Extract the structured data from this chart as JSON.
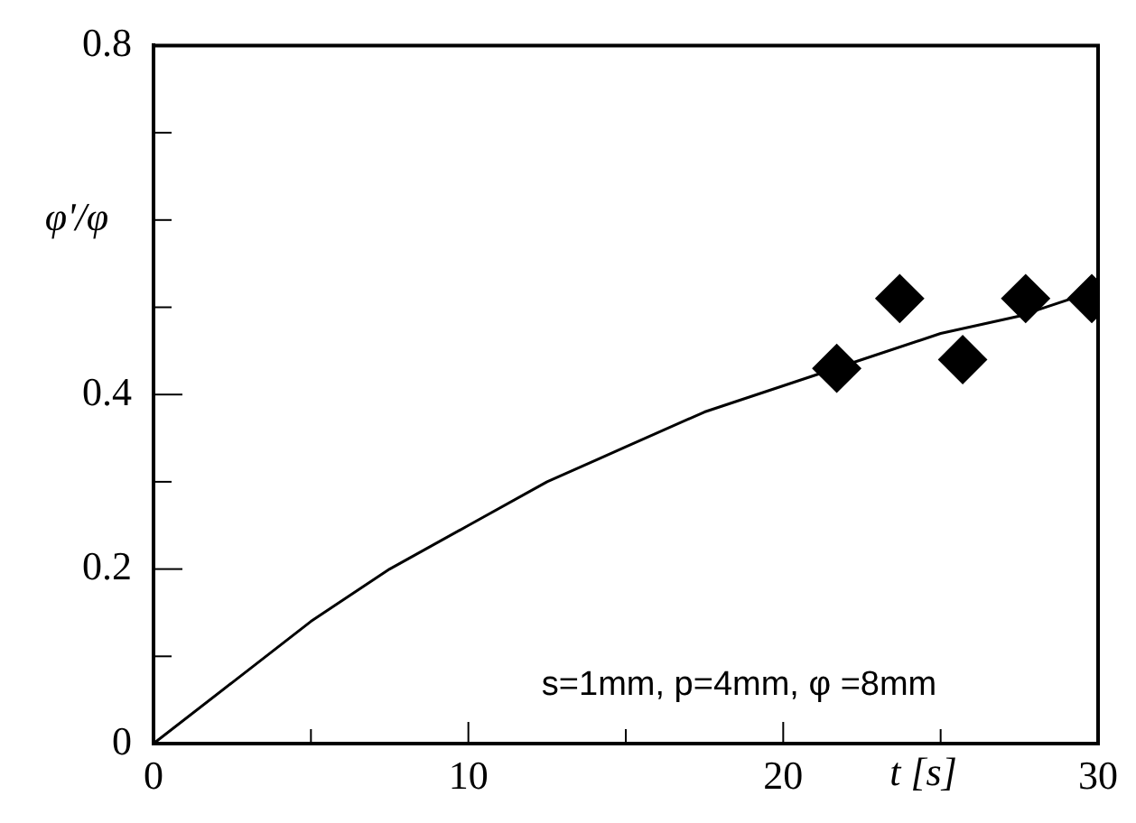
{
  "chart_data": {
    "type": "scatter",
    "xlabel": "t [s]",
    "ylabel": "φ'/φ",
    "annotations": [
      "s=1mm, p=4mm, φ =8mm"
    ],
    "xlim": [
      0,
      30
    ],
    "ylim": [
      0,
      0.8
    ],
    "xticks": [
      0,
      {
        "value": 5,
        "label": null
      },
      10,
      {
        "value": 15,
        "label": null
      },
      20,
      {
        "value": 25,
        "label": null
      },
      30
    ],
    "yticks": [
      0,
      {
        "value": 0.1,
        "label": null
      },
      0.2,
      {
        "value": 0.3,
        "label": null
      },
      0.4,
      {
        "value": 0.5,
        "label": null
      },
      {
        "value": 0.6,
        "label": null
      },
      {
        "value": 0.7,
        "label": null
      },
      0.8
    ],
    "grid": false,
    "legend": false,
    "marker": "diamond",
    "series": [
      {
        "color": "#000000",
        "x": [
          21.7,
          23.7,
          25.7,
          27.7,
          29.8
        ],
        "values": [
          0.43,
          0.51,
          0.44,
          0.51,
          0.51
        ]
      },
      {
        "type": "line",
        "color": "#000000",
        "x": [
          0,
          2.5,
          5,
          7.5,
          10,
          12.5,
          15,
          17.5,
          20,
          22.5,
          25,
          27.5,
          30
        ],
        "values": [
          0,
          0.07,
          0.14,
          0.2,
          0.25,
          0.3,
          0.34,
          0.38,
          0.41,
          0.44,
          0.47,
          0.49,
          0.52
        ],
        "marker": "none",
        "line_style": "solid"
      }
    ]
  }
}
